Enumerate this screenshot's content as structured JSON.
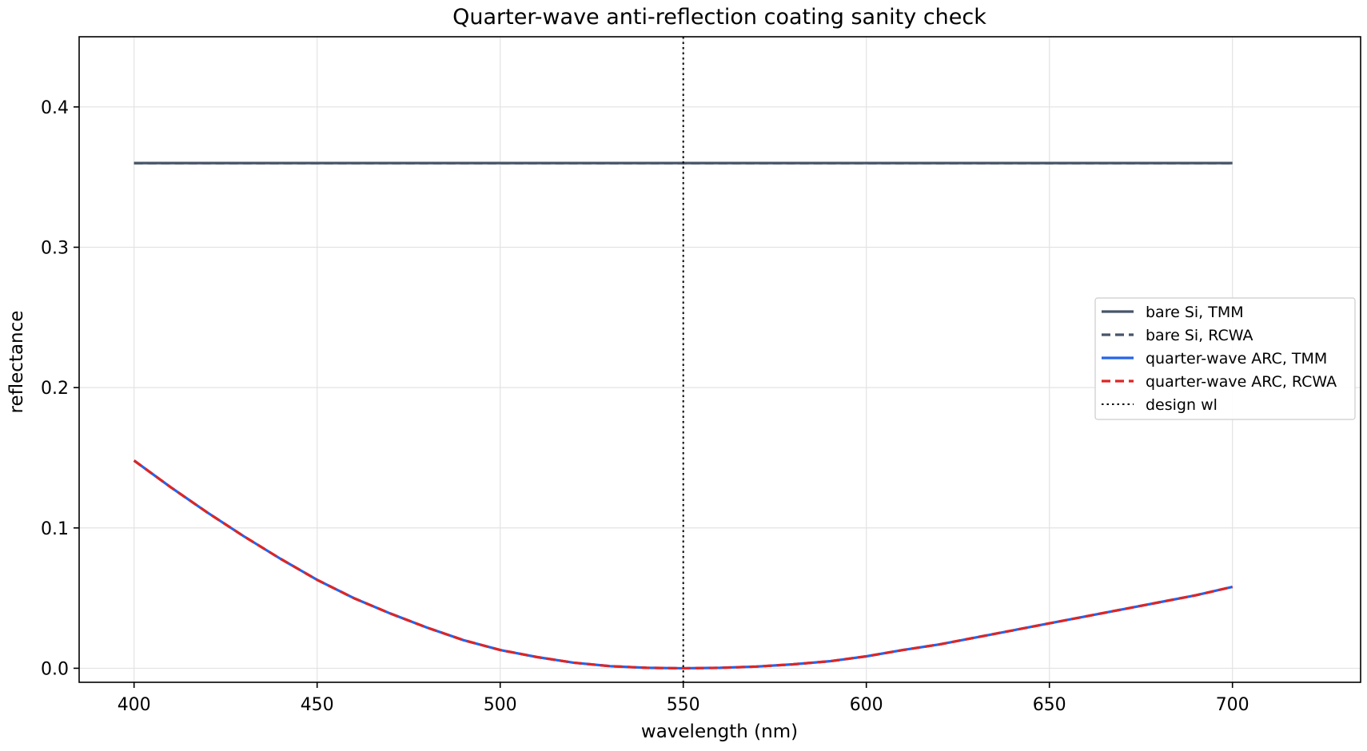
{
  "chart_data": {
    "type": "line",
    "title": "Quarter-wave anti-reflection coating sanity check",
    "xlabel": "wavelength (nm)",
    "ylabel": "reflectance",
    "xlim": [
      385,
      735
    ],
    "ylim": [
      -0.01,
      0.45
    ],
    "xticks": [
      400,
      450,
      500,
      550,
      600,
      650,
      700
    ],
    "yticks": [
      0.0,
      0.1,
      0.2,
      0.3,
      0.4
    ],
    "xtick_labels": [
      "400",
      "450",
      "500",
      "550",
      "600",
      "650",
      "700"
    ],
    "ytick_labels": [
      "0.0",
      "0.1",
      "0.2",
      "0.3",
      "0.4"
    ],
    "grid": true,
    "legend_position": "center-right",
    "x": [
      400,
      410,
      420,
      430,
      440,
      450,
      460,
      470,
      480,
      490,
      500,
      510,
      520,
      530,
      540,
      550,
      560,
      570,
      580,
      590,
      600,
      610,
      620,
      630,
      640,
      650,
      660,
      670,
      680,
      690,
      700
    ],
    "series": [
      {
        "name": "bare Si, TMM",
        "color": "#475569",
        "style": "solid",
        "values": [
          0.36,
          0.36,
          0.36,
          0.36,
          0.36,
          0.36,
          0.36,
          0.36,
          0.36,
          0.36,
          0.36,
          0.36,
          0.36,
          0.36,
          0.36,
          0.36,
          0.36,
          0.36,
          0.36,
          0.36,
          0.36,
          0.36,
          0.36,
          0.36,
          0.36,
          0.36,
          0.36,
          0.36,
          0.36,
          0.36,
          0.36
        ]
      },
      {
        "name": "bare Si, RCWA",
        "color": "#475569",
        "style": "dashed",
        "values": [
          0.36,
          0.36,
          0.36,
          0.36,
          0.36,
          0.36,
          0.36,
          0.36,
          0.36,
          0.36,
          0.36,
          0.36,
          0.36,
          0.36,
          0.36,
          0.36,
          0.36,
          0.36,
          0.36,
          0.36,
          0.36,
          0.36,
          0.36,
          0.36,
          0.36,
          0.36,
          0.36,
          0.36,
          0.36,
          0.36,
          0.36
        ]
      },
      {
        "name": "quarter-wave ARC, TMM",
        "color": "#2563eb",
        "style": "solid",
        "values": [
          0.148,
          0.129,
          0.111,
          0.094,
          0.078,
          0.063,
          0.05,
          0.039,
          0.029,
          0.02,
          0.013,
          0.008,
          0.004,
          0.0015,
          0.0003,
          0.0,
          0.0003,
          0.0012,
          0.0028,
          0.005,
          0.0085,
          0.013,
          0.017,
          0.022,
          0.027,
          0.032,
          0.037,
          0.042,
          0.047,
          0.052,
          0.058
        ]
      },
      {
        "name": "quarter-wave ARC, RCWA",
        "color": "#dc2626",
        "style": "dashed",
        "values": [
          0.148,
          0.129,
          0.111,
          0.094,
          0.078,
          0.063,
          0.05,
          0.039,
          0.029,
          0.02,
          0.013,
          0.008,
          0.004,
          0.0015,
          0.0003,
          0.0,
          0.0003,
          0.0012,
          0.0028,
          0.005,
          0.0085,
          0.013,
          0.017,
          0.022,
          0.027,
          0.032,
          0.037,
          0.042,
          0.047,
          0.052,
          0.058
        ]
      }
    ],
    "vline": {
      "name": "design wl",
      "x": 550,
      "color": "#000000",
      "style": "dotted"
    }
  }
}
